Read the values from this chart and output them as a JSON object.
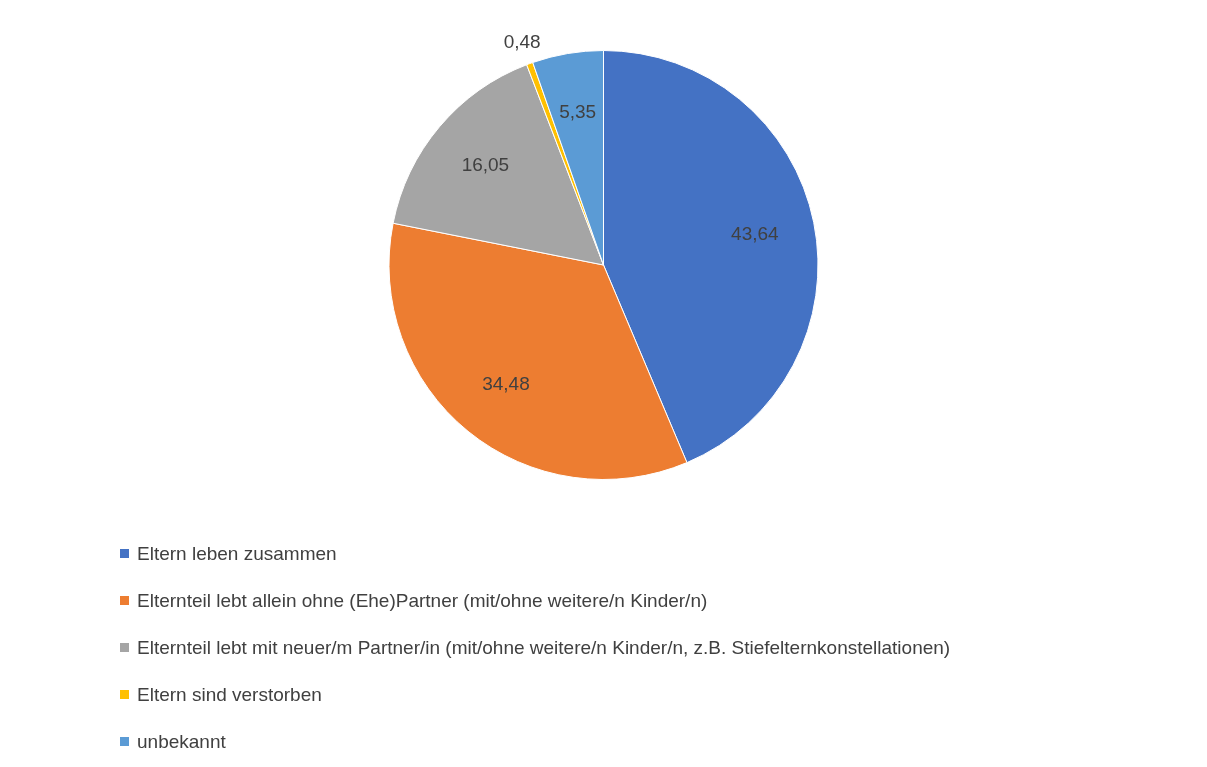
{
  "chart_data": {
    "type": "pie",
    "categories": [
      "Eltern leben zusammen",
      "Elternteil lebt allein ohne (Ehe)Partner (mit/ohne weitere/n Kinder/n)",
      "Elternteil lebt mit neuer/m Partner/in (mit/ohne weitere/n Kinder/n, z.B. Stiefelternkonstellationen)",
      "Eltern sind verstorben",
      "unbekannt"
    ],
    "values": [
      43.64,
      34.48,
      16.05,
      0.48,
      5.35
    ],
    "value_labels": [
      "43,64",
      "34,48",
      "16,05",
      "0,48",
      "5,35"
    ],
    "colors": [
      "#4472c4",
      "#ed7d31",
      "#a5a5a5",
      "#ffc000",
      "#5b9bd5"
    ],
    "legend": "bottom"
  }
}
